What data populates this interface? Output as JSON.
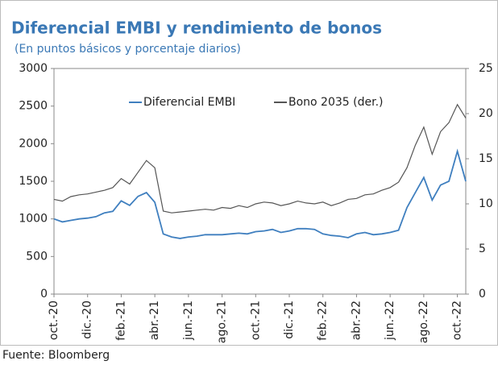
{
  "chart_data": {
    "type": "line",
    "title": "Diferencial EMBI y rendimiento de bonos",
    "subtitle": "(En puntos básicos y porcentaje diarios)",
    "source": "Fuente: Bloomberg",
    "categories": [
      "oct.-20",
      null,
      null,
      null,
      "dic.-20",
      null,
      null,
      null,
      "feb.-21",
      null,
      null,
      null,
      "abr.-21",
      null,
      null,
      null,
      "jun.-21",
      null,
      null,
      null,
      "ago.-21",
      null,
      null,
      null,
      "oct.-21",
      null,
      null,
      null,
      "dic.-21",
      null,
      null,
      null,
      "feb.-22",
      null,
      null,
      null,
      "abr.-22",
      null,
      null,
      null,
      "jun.-22",
      null,
      null,
      null,
      "ago.-22",
      null,
      null,
      null,
      "oct.-22",
      null
    ],
    "series": [
      {
        "name": "Diferencial EMBI",
        "color": "#3f7fbf",
        "axis": "y",
        "values": [
          1000,
          960,
          980,
          1000,
          1010,
          1030,
          1080,
          1100,
          1240,
          1180,
          1300,
          1350,
          1220,
          800,
          760,
          740,
          760,
          770,
          790,
          790,
          790,
          800,
          810,
          800,
          830,
          840,
          860,
          820,
          840,
          870,
          870,
          860,
          800,
          780,
          770,
          750,
          800,
          820,
          790,
          800,
          820,
          850,
          1150,
          1350,
          1550,
          1250,
          1450,
          1500,
          1900,
          1500
        ]
      },
      {
        "name": "Bono 2035  (der.)",
        "color": "#555555",
        "axis": "y2",
        "values": [
          10.5,
          10.3,
          10.8,
          11,
          11.1,
          11.3,
          11.5,
          11.8,
          12.8,
          12.2,
          13.5,
          14.8,
          14,
          9.2,
          9,
          9.1,
          9.2,
          9.3,
          9.4,
          9.3,
          9.6,
          9.5,
          9.8,
          9.6,
          10,
          10.2,
          10.1,
          9.8,
          10,
          10.3,
          10.1,
          10,
          10.2,
          9.8,
          10.1,
          10.5,
          10.6,
          11,
          11.1,
          11.5,
          11.8,
          12.4,
          14,
          16.5,
          18.5,
          15.5,
          18,
          19,
          21,
          19.5
        ]
      }
    ],
    "ylim": [
      0,
      3000
    ],
    "yticks": [
      0,
      500,
      1000,
      1500,
      2000,
      2500,
      3000
    ],
    "y2lim": [
      0,
      25
    ],
    "y2ticks": [
      0,
      5,
      10,
      15,
      20,
      25
    ],
    "grid": false
  }
}
